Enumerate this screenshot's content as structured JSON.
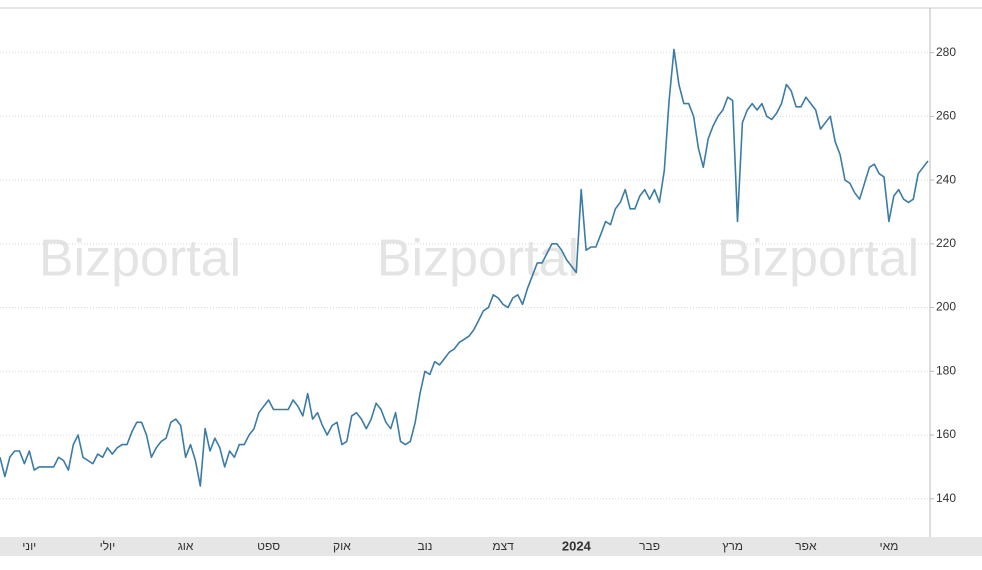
{
  "chart_data": {
    "type": "line",
    "watermark": "Bizportal",
    "categories": [
      null,
      null,
      null,
      null,
      null,
      null,
      "יוני",
      null,
      null,
      null,
      null,
      null,
      null,
      null,
      null,
      null,
      null,
      null,
      null,
      null,
      null,
      null,
      "יולי",
      null,
      null,
      null,
      null,
      null,
      null,
      null,
      null,
      null,
      null,
      null,
      null,
      null,
      null,
      null,
      "אוג",
      null,
      null,
      null,
      null,
      null,
      null,
      null,
      null,
      null,
      null,
      null,
      null,
      null,
      null,
      null,
      null,
      "ספט",
      null,
      null,
      null,
      null,
      null,
      null,
      null,
      null,
      null,
      null,
      null,
      null,
      null,
      null,
      "אוק",
      null,
      null,
      null,
      null,
      null,
      null,
      null,
      null,
      null,
      null,
      null,
      null,
      null,
      null,
      null,
      null,
      "נוב",
      null,
      null,
      null,
      null,
      null,
      null,
      null,
      null,
      null,
      null,
      null,
      null,
      null,
      null,
      null,
      "דצמ",
      null,
      null,
      null,
      null,
      null,
      null,
      null,
      null,
      null,
      null,
      null,
      null,
      null,
      null,
      "2024",
      null,
      null,
      null,
      null,
      null,
      null,
      null,
      null,
      null,
      null,
      null,
      null,
      null,
      null,
      "פבר",
      null,
      null,
      null,
      null,
      null,
      null,
      null,
      null,
      null,
      null,
      null,
      null,
      null,
      null,
      null,
      null,
      "מרץ",
      null,
      null,
      null,
      null,
      null,
      null,
      null,
      null,
      null,
      null,
      null,
      null,
      null,
      null,
      "אפר",
      null,
      null,
      null,
      null,
      null,
      null,
      null,
      null,
      null,
      null,
      null,
      null,
      null,
      null,
      null,
      null,
      "מאי",
      null,
      null,
      null,
      null,
      null,
      null,
      null,
      null
    ],
    "values": [
      153,
      147,
      153,
      155,
      155,
      151,
      155,
      149,
      150,
      150,
      150,
      150,
      153,
      152,
      149,
      157,
      160,
      153,
      152,
      151,
      154,
      153,
      156,
      154,
      156,
      157,
      157,
      161,
      164,
      164,
      160,
      153,
      156,
      158,
      159,
      164,
      165,
      163,
      153,
      157,
      152,
      144,
      162,
      155,
      159,
      156,
      150,
      155,
      153,
      157,
      157,
      160,
      162,
      167,
      169,
      171,
      168,
      168,
      168,
      168,
      171,
      169,
      166,
      173,
      165,
      167,
      163,
      160,
      163,
      164,
      157,
      158,
      166,
      167,
      165,
      162,
      165,
      170,
      168,
      164,
      162,
      167,
      158,
      157,
      158,
      164,
      173,
      180,
      179,
      183,
      182,
      184,
      186,
      187,
      189,
      190,
      191,
      193,
      196,
      199,
      200,
      204,
      203,
      201,
      200,
      203,
      204,
      201,
      206,
      210,
      214,
      214,
      217,
      220,
      220,
      218,
      215,
      213,
      211,
      237,
      218,
      219,
      219,
      223,
      227,
      226,
      231,
      233,
      237,
      231,
      231,
      235,
      237,
      234,
      237,
      233,
      243,
      265,
      281,
      270,
      264,
      264,
      260,
      250,
      244,
      253,
      257,
      260,
      262,
      266,
      265,
      227,
      258,
      262,
      264,
      262,
      264,
      260,
      259,
      261,
      264,
      270,
      268,
      263,
      263,
      266,
      264,
      262,
      256,
      258,
      260,
      252,
      248,
      240,
      239,
      236,
      234,
      239,
      244,
      245,
      242,
      241,
      227,
      235,
      237,
      234,
      233,
      234,
      242,
      244,
      246
    ],
    "color": "#3b7ca6",
    "ylim": [
      128,
      294
    ],
    "yticks": [
      140,
      160,
      180,
      200,
      220,
      240,
      260,
      280
    ],
    "grid": true
  }
}
